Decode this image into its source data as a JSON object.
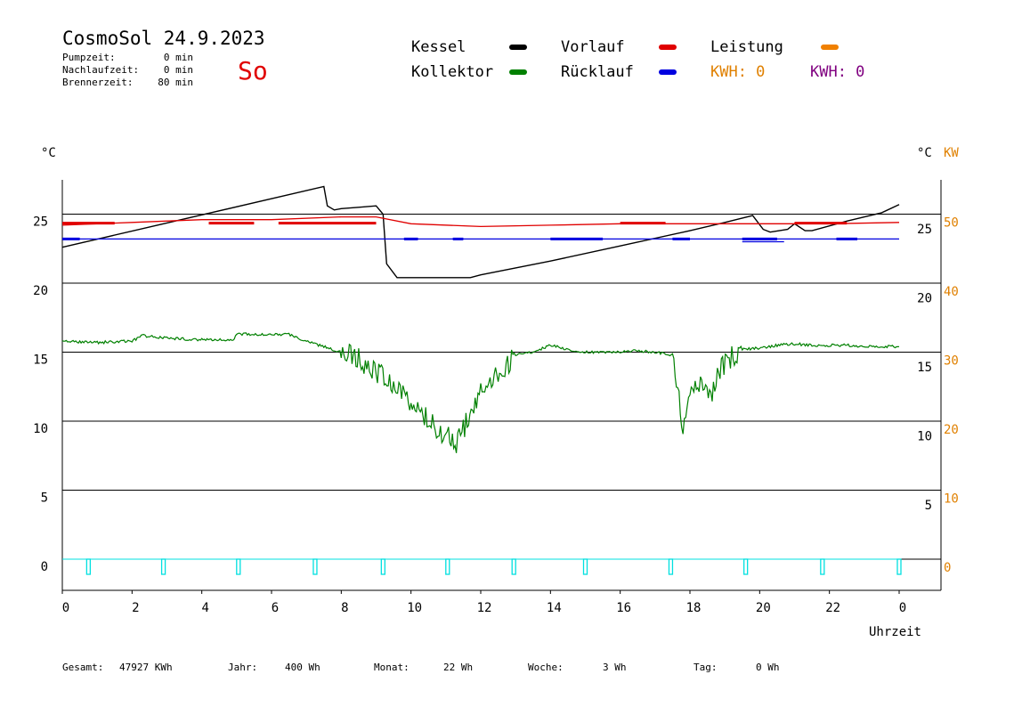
{
  "header": {
    "title": "CosmoSol 24.9.2023",
    "day": "So",
    "stats": [
      {
        "label": "Pumpzeit:",
        "value": "0 min"
      },
      {
        "label": "Nachlaufzeit:",
        "value": "0 min"
      },
      {
        "label": "Brennerzeit:",
        "value": "80 min"
      }
    ]
  },
  "legend": {
    "items": [
      {
        "name": "Kessel",
        "color": "#000000"
      },
      {
        "name": "Kollektor",
        "color": "#008000"
      },
      {
        "name": "Vorlauf",
        "color": "#e00000"
      },
      {
        "name": "Rücklauf",
        "color": "#0000e0"
      },
      {
        "name": "Leistung",
        "color": "#f08000"
      }
    ],
    "kwh": [
      {
        "text": "KWH: 0",
        "color": "#e08000"
      },
      {
        "text": "KWH: 0",
        "color": "#800080"
      }
    ]
  },
  "footer": [
    {
      "label": "Gesamt:",
      "value": "47927 KWh"
    },
    {
      "label": "Jahr:",
      "value": "400 Wh"
    },
    {
      "label": "Monat:",
      "value": "22 Wh"
    },
    {
      "label": "Woche:",
      "value": "3 Wh"
    },
    {
      "label": "Tag:",
      "value": "0 Wh"
    }
  ],
  "chart_data": {
    "type": "line",
    "xlabel": "Uhrzeit",
    "xlim": [
      0,
      24
    ],
    "x_ticks": [
      "0",
      "2",
      "4",
      "6",
      "8",
      "10",
      "12",
      "14",
      "16",
      "18",
      "20",
      "22",
      "0"
    ],
    "left_unit": "°C",
    "left_ticks": [
      "0",
      "5",
      "10",
      "15",
      "20",
      "25"
    ],
    "right_unit": "°C",
    "right_ticks": [
      "5",
      "10",
      "15",
      "20",
      "25"
    ],
    "right2_unit": "KW",
    "right2_ticks": [
      "0",
      "10",
      "20",
      "30",
      "40",
      "50"
    ],
    "grid": true,
    "colors": {
      "cyan": "#00e0e0",
      "orange": "#e08000"
    },
    "series": [
      {
        "name": "Kessel",
        "color": "#000000",
        "x": [
          0,
          7.5,
          7.6,
          7.8,
          8.0,
          8.5,
          9.0,
          9.2,
          9.3,
          9.6,
          11.7,
          12.0,
          14.0,
          16.0,
          18.0,
          19.0,
          19.8,
          20.1,
          20.3,
          20.8,
          21.0,
          21.3,
          21.5,
          22.5,
          23.5,
          24.0
        ],
        "y": [
          22.6,
          27.0,
          25.6,
          25.3,
          25.4,
          25.5,
          25.6,
          25.0,
          21.4,
          20.4,
          20.4,
          20.6,
          21.6,
          22.7,
          23.8,
          24.4,
          24.9,
          23.9,
          23.7,
          23.9,
          24.3,
          23.8,
          23.8,
          24.5,
          25.1,
          25.7
        ]
      },
      {
        "name": "Vorlauf",
        "color": "#e00000",
        "x": [
          0,
          2,
          4,
          6,
          8,
          9.0,
          10,
          12,
          14,
          16,
          18,
          20,
          22,
          24
        ],
        "y": [
          24.2,
          24.4,
          24.6,
          24.6,
          24.8,
          24.8,
          24.3,
          24.1,
          24.2,
          24.3,
          24.3,
          24.3,
          24.3,
          24.4
        ]
      },
      {
        "name": "Rücklauf",
        "color": "#0000e0",
        "x": [
          0,
          24
        ],
        "y": [
          23.2,
          23.2
        ]
      },
      {
        "name": "Kollektor",
        "color": "#008000",
        "x": [
          0,
          1,
          2,
          2.3,
          3,
          4,
          4.9,
          5,
          6,
          6.5,
          7,
          7.5,
          8,
          8.5,
          9,
          9.5,
          10,
          10.5,
          11,
          11.3,
          11.5,
          11.8,
          12,
          12.5,
          13,
          13.5,
          14,
          14.5,
          15,
          15.5,
          16,
          16.5,
          17,
          17.5,
          17.8,
          18,
          18.3,
          18.6,
          18.9,
          19.5,
          20,
          20.5,
          21,
          21.5,
          22,
          22.5,
          23,
          24
        ],
        "y": [
          15.8,
          15.7,
          15.8,
          16.2,
          16.0,
          15.9,
          15.9,
          16.3,
          16.3,
          16.3,
          15.8,
          15.4,
          15.0,
          14.5,
          13.6,
          12.5,
          11.5,
          10.0,
          9.0,
          8.2,
          9.5,
          10.8,
          12.5,
          13.5,
          14.8,
          15.0,
          15.5,
          15.2,
          15.0,
          15.0,
          15.0,
          15.1,
          15.0,
          14.8,
          9.5,
          12.0,
          12.5,
          11.5,
          14.0,
          15.2,
          15.3,
          15.5,
          15.6,
          15.5,
          15.5,
          15.5,
          15.4,
          15.4
        ]
      },
      {
        "name": "Pulse",
        "color": "#00e0e0",
        "x": [
          0.75,
          2.9,
          5.05,
          7.25,
          9.2,
          11.05,
          12.95,
          15.0,
          17.45,
          19.6,
          21.8,
          24.0
        ],
        "y": [
          0,
          0,
          0,
          0,
          0,
          0,
          0,
          0,
          0,
          0,
          0,
          0
        ]
      }
    ]
  }
}
